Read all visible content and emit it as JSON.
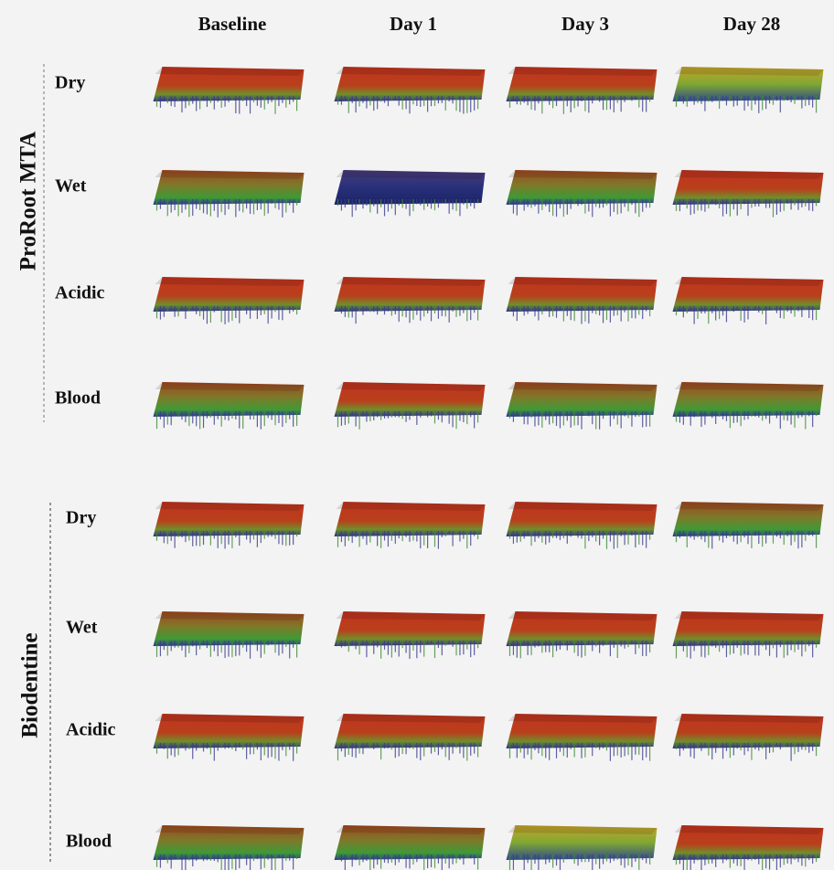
{
  "columns": [
    "Baseline",
    "Day 1",
    "Day 3",
    "Day 28"
  ],
  "groups": [
    {
      "label": "ProRoot MTA",
      "rows": [
        "Dry",
        "Wet",
        "Acidic",
        "Blood"
      ]
    },
    {
      "label": "Biodentine",
      "rows": [
        "Dry",
        "Wet",
        "Acidic",
        "Blood"
      ]
    }
  ]
}
